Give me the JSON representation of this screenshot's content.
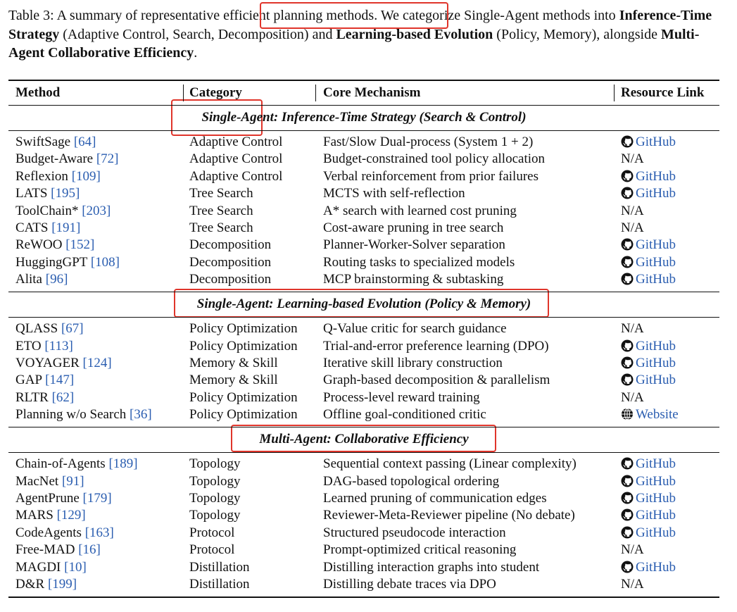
{
  "caption": [
    "Table 3: A summary of representative efficient planning methods. We categorize Single-Agent methods into ",
    "Inference-Time Strategy",
    " (Adaptive Control, Search, Decomposition) and ",
    "Learning-based Evolution",
    " (Policy, Memory), alongside ",
    "Multi-Agent Collaborative Efficiency",
    "."
  ],
  "table": {
    "headers": [
      "Method",
      "Category",
      "Core Mechanism",
      "Resource Link"
    ],
    "sections": [
      {
        "title": "Single-Agent: Inference-Time Strategy (Search & Control)",
        "rows": [
          {
            "method": "SwiftSage",
            "ref": "[64]",
            "category": "Adaptive Control",
            "mechanism": "Fast/Slow Dual-process (System 1 + 2)",
            "link": "GitHub",
            "icon": "github"
          },
          {
            "method": "Budget-Aware",
            "ref": "[72]",
            "category": "Adaptive Control",
            "mechanism": "Budget-constrained tool policy allocation",
            "link": "N/A"
          },
          {
            "method": "Reflexion",
            "ref": "[109]",
            "category": "Adaptive Control",
            "mechanism": "Verbal reinforcement from prior failures",
            "link": "GitHub",
            "icon": "github"
          },
          {
            "method": "LATS",
            "ref": "[195]",
            "category": "Tree Search",
            "mechanism": "MCTS with self-reflection",
            "link": "GitHub",
            "icon": "github"
          },
          {
            "method": "ToolChain*",
            "ref": "[203]",
            "category": "Tree Search",
            "mechanism": "A* search with learned cost pruning",
            "link": "N/A"
          },
          {
            "method": "CATS",
            "ref": "[191]",
            "category": "Tree Search",
            "mechanism": "Cost-aware pruning in tree search",
            "link": "N/A"
          },
          {
            "method": "ReWOO",
            "ref": "[152]",
            "category": "Decomposition",
            "mechanism": "Planner-Worker-Solver separation",
            "link": "GitHub",
            "icon": "github"
          },
          {
            "method": "HuggingGPT",
            "ref": "[108]",
            "category": "Decomposition",
            "mechanism": "Routing tasks to specialized models",
            "link": "GitHub",
            "icon": "github"
          },
          {
            "method": "Alita",
            "ref": "[96]",
            "category": "Decomposition",
            "mechanism": "MCP brainstorming & subtasking",
            "link": "GitHub",
            "icon": "github"
          }
        ]
      },
      {
        "title": "Single-Agent: Learning-based Evolution (Policy & Memory)",
        "rows": [
          {
            "method": "QLASS",
            "ref": "[67]",
            "category": "Policy Optimization",
            "mechanism": "Q-Value critic for search guidance",
            "link": "N/A"
          },
          {
            "method": "ETO",
            "ref": "[113]",
            "category": "Policy Optimization",
            "mechanism": "Trial-and-error preference learning (DPO)",
            "link": "GitHub",
            "icon": "github"
          },
          {
            "method": "VOYAGER",
            "ref": "[124]",
            "category": "Memory & Skill",
            "mechanism": "Iterative skill library construction",
            "link": "GitHub",
            "icon": "github"
          },
          {
            "method": "GAP",
            "ref": "[147]",
            "category": "Memory & Skill",
            "mechanism": "Graph-based decomposition & parallelism",
            "link": "GitHub",
            "icon": "github"
          },
          {
            "method": "RLTR",
            "ref": "[62]",
            "category": "Policy Optimization",
            "mechanism": "Process-level reward training",
            "link": "N/A"
          },
          {
            "method": "Planning w/o Search",
            "ref": "[36]",
            "category": "Policy Optimization",
            "mechanism": "Offline goal-conditioned critic",
            "link": "Website",
            "icon": "globe"
          }
        ]
      },
      {
        "title": "Multi-Agent: Collaborative Efficiency",
        "rows": [
          {
            "method": "Chain-of-Agents",
            "ref": "[189]",
            "category": "Topology",
            "mechanism": "Sequential context passing (Linear complexity)",
            "link": "GitHub",
            "icon": "github"
          },
          {
            "method": "MacNet",
            "ref": "[91]",
            "category": "Topology",
            "mechanism": "DAG-based topological ordering",
            "link": "GitHub",
            "icon": "github"
          },
          {
            "method": "AgentPrune",
            "ref": "[179]",
            "category": "Topology",
            "mechanism": "Learned pruning of communication edges",
            "link": "GitHub",
            "icon": "github"
          },
          {
            "method": "MARS",
            "ref": "[129]",
            "category": "Topology",
            "mechanism": "Reviewer-Meta-Reviewer pipeline (No debate)",
            "link": "GitHub",
            "icon": "github"
          },
          {
            "method": "CodeAgents",
            "ref": "[163]",
            "category": "Protocol",
            "mechanism": "Structured pseudocode interaction",
            "link": "GitHub",
            "icon": "github"
          },
          {
            "method": "Free-MAD",
            "ref": "[16]",
            "category": "Protocol",
            "mechanism": "Prompt-optimized critical reasoning",
            "link": "N/A"
          },
          {
            "method": "MAGDI",
            "ref": "[10]",
            "category": "Distillation",
            "mechanism": "Distilling interaction graphs into student",
            "link": "GitHub",
            "icon": "github"
          },
          {
            "method": "D&R",
            "ref": "[199]",
            "category": "Distillation",
            "mechanism": "Distilling debate traces via DPO",
            "link": "N/A"
          }
        ]
      }
    ]
  }
}
